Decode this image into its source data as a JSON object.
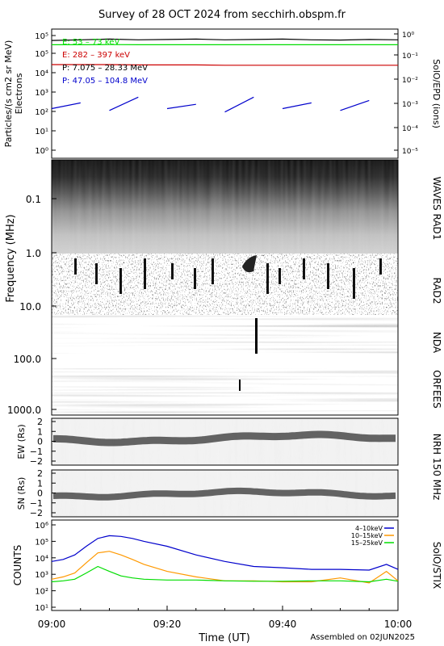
{
  "title": "Survey of 28 OCT 2024 from secchirh.obspm.fr",
  "footer": "Assembled on 02JUN2025",
  "xaxis": {
    "label": "Time (UT)",
    "ticks": [
      "09:00",
      "09:20",
      "09:40",
      "10:00"
    ],
    "range": [
      "09:00",
      "10:00"
    ]
  },
  "colors": {
    "green": "#00dd00",
    "red": "#cc0000",
    "black": "#000000",
    "blue": "#0000cc",
    "orange": "#ff9900"
  },
  "epd": {
    "ylabel": "Particles/(s cm2 sr MeV)",
    "ylabel2": "Electrons",
    "right_label": "SolO/EPD (ions)",
    "left_ticks": [
      "10⁵",
      "10⁵",
      "10⁴",
      "10³",
      "10²",
      "10¹",
      "10⁰"
    ],
    "right_ticks": [
      "10⁰",
      "10⁻¹",
      "10⁻²",
      "10⁻³",
      "10⁻⁴",
      "10⁻⁵"
    ],
    "legend": [
      {
        "text": "E: 53 – 73 keV",
        "color": "#00dd00"
      },
      {
        "text": "E: 282 – 397 keV",
        "color": "#cc0000"
      },
      {
        "text": "P: 7.075 – 28.33 MeV",
        "color": "#000000"
      },
      {
        "text": "P: 47.05 – 104.8 MeV",
        "color": "#0000cc"
      }
    ]
  },
  "radio": {
    "ylabel": "Frequency (MHz)",
    "ticks": [
      "0.1",
      "1.0",
      "10.0",
      "100.0",
      "1000.0"
    ],
    "instruments": [
      "WAVES RAD1",
      "RAD2",
      "NDA",
      "ORFEES"
    ]
  },
  "nrh": {
    "ew_label": "EW (Rs)",
    "sn_label": "SN (Rs)",
    "ticks": [
      "2",
      "1",
      "0",
      "−1",
      "−2"
    ],
    "instrument": "NRH 150 MHz"
  },
  "stix": {
    "ylabel": "COUNTS",
    "right_label": "SolO/STIX",
    "ticks": [
      "10⁶",
      "10⁵",
      "10⁴",
      "10³",
      "10²",
      "10¹"
    ],
    "legend": [
      {
        "text": "4–10keV",
        "color": "#0000cc"
      },
      {
        "text": "10–15keV",
        "color": "#ff9900"
      },
      {
        "text": "15–25keV",
        "color": "#00dd00"
      }
    ]
  },
  "chart_data": [
    {
      "type": "line",
      "title": "SolO/EPD",
      "yscale": "log",
      "ylim": [
        1,
        1000000
      ],
      "x": [
        0,
        5,
        10,
        15,
        20,
        25,
        30,
        35,
        40,
        45,
        50,
        55,
        60
      ],
      "series": [
        {
          "name": "E: 53 – 73 keV",
          "values": [
            330000,
            330000,
            335000,
            330000,
            330000,
            330000,
            330000,
            330000,
            330000,
            330000,
            330000,
            330000,
            330000
          ]
        },
        {
          "name": "E: 282 – 397 keV",
          "values": [
            30000,
            30000,
            30000,
            29000,
            29000,
            29000,
            28000,
            28000,
            28000,
            28000,
            28000,
            28000,
            28000
          ]
        },
        {
          "name": "P: 7.075 – 28.33 MeV",
          "values": [
            550000,
            600000,
            650000,
            600000,
            620000,
            650000,
            600000,
            620000,
            650000,
            600000,
            580000,
            620000,
            600000
          ]
        },
        {
          "name": "P: 47.05 – 104.8 MeV",
          "values": [
            150,
            300,
            120,
            600,
            150,
            250,
            100,
            600,
            150,
            300,
            120,
            400,
            150
          ]
        }
      ]
    },
    {
      "type": "line",
      "title": "SolO/STIX",
      "yscale": "log",
      "ylim": [
        10,
        1000000
      ],
      "x": [
        0,
        2,
        4,
        6,
        8,
        10,
        12,
        14,
        16,
        20,
        25,
        30,
        35,
        40,
        45,
        50,
        55,
        58,
        60
      ],
      "series": [
        {
          "name": "4–10keV",
          "values": [
            6000,
            8000,
            15000,
            50000,
            150000,
            220000,
            200000,
            150000,
            100000,
            50000,
            15000,
            6000,
            3000,
            2500,
            2000,
            2000,
            1800,
            4000,
            2000
          ]
        },
        {
          "name": "10–15keV",
          "values": [
            500,
            700,
            1200,
            5000,
            20000,
            25000,
            15000,
            8000,
            4000,
            1500,
            700,
            400,
            400,
            350,
            350,
            600,
            300,
            1500,
            400
          ]
        },
        {
          "name": "15–25keV",
          "values": [
            350,
            400,
            500,
            1200,
            3000,
            1500,
            800,
            600,
            500,
            450,
            450,
            400,
            380,
            380,
            400,
            400,
            350,
            500,
            380
          ]
        }
      ]
    }
  ]
}
